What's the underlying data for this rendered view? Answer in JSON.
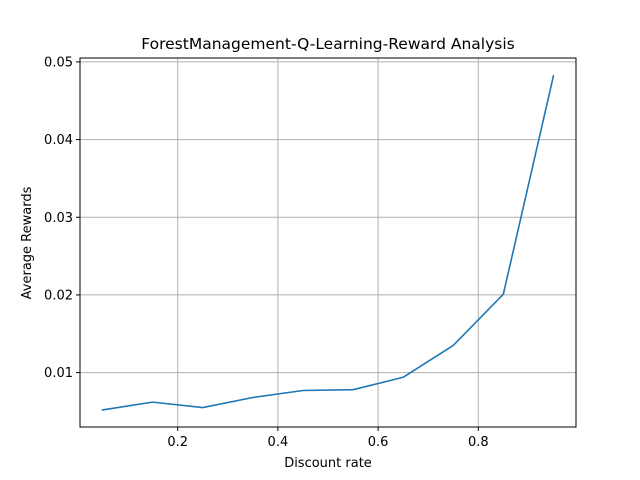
{
  "chart_data": {
    "type": "line",
    "title": "ForestManagement-Q-Learning-Reward Analysis",
    "xlabel": "Discount rate",
    "ylabel": "Average Rewards",
    "xlim": [
      0.005,
      0.995
    ],
    "ylim": [
      0.003,
      0.0505
    ],
    "xticks": [
      0.2,
      0.4,
      0.6,
      0.8
    ],
    "xtick_labels": [
      "0.2",
      "0.4",
      "0.6",
      "0.8"
    ],
    "yticks": [
      0.01,
      0.02,
      0.03,
      0.04,
      0.05
    ],
    "ytick_labels": [
      "0.01",
      "0.02",
      "0.03",
      "0.04",
      "0.05"
    ],
    "grid": true,
    "series": [
      {
        "color": "#1f77b4",
        "x": [
          0.05,
          0.15,
          0.25,
          0.35,
          0.45,
          0.55,
          0.65,
          0.75,
          0.85,
          0.95
        ],
        "y": [
          0.0052,
          0.0062,
          0.0055,
          0.0068,
          0.0077,
          0.0078,
          0.0094,
          0.0135,
          0.0201,
          0.0482
        ]
      }
    ]
  }
}
